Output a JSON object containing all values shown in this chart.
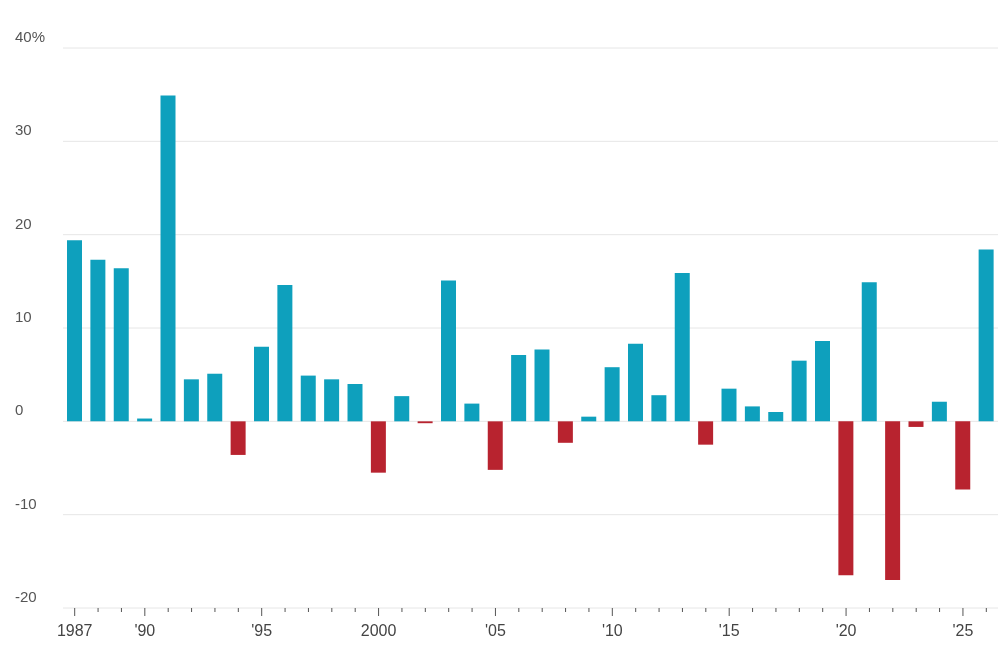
{
  "chart_data": {
    "type": "bar",
    "categories": [
      "1987",
      null,
      null,
      "'90",
      null,
      null,
      null,
      null,
      "'95",
      null,
      null,
      null,
      null,
      "2000",
      null,
      null,
      null,
      null,
      "'05",
      null,
      null,
      null,
      null,
      "'10",
      null,
      null,
      null,
      null,
      "'15",
      null,
      null,
      null,
      null,
      "'20",
      null,
      null,
      null,
      null,
      "'25",
      null
    ],
    "values": [
      19.4,
      17.3,
      16.4,
      0.3,
      34.9,
      4.5,
      5.1,
      -3.6,
      8.0,
      14.6,
      4.9,
      4.5,
      4.0,
      -5.5,
      2.7,
      -0.2,
      15.1,
      1.9,
      -5.2,
      7.1,
      7.7,
      -2.3,
      0.5,
      5.8,
      8.3,
      2.8,
      15.9,
      -2.5,
      3.5,
      1.6,
      1.0,
      6.5,
      8.6,
      -16.5,
      14.9,
      -17.0,
      -0.6,
      2.1,
      -7.3,
      18.4
    ],
    "colors": [
      "#0ea0bd",
      "#0ea0bd",
      "#0ea0bd",
      "#0ea0bd",
      "#0ea0bd",
      "#0ea0bd",
      "#0ea0bd",
      "#b8232f",
      "#0ea0bd",
      "#0ea0bd",
      "#0ea0bd",
      "#0ea0bd",
      "#0ea0bd",
      "#b8232f",
      "#0ea0bd",
      "#b8232f",
      "#0ea0bd",
      "#0ea0bd",
      "#b8232f",
      "#0ea0bd",
      "#0ea0bd",
      "#b8232f",
      "#0ea0bd",
      "#0ea0bd",
      "#0ea0bd",
      "#0ea0bd",
      "#0ea0bd",
      "#b8232f",
      "#0ea0bd",
      "#0ea0bd",
      "#0ea0bd",
      "#0ea0bd",
      "#0ea0bd",
      "#b8232f",
      "#0ea0bd",
      "#b8232f",
      "#b8232f",
      "#0ea0bd",
      "#b8232f",
      "#0ea0bd"
    ],
    "ylim": [
      -20,
      40
    ],
    "yticks": [
      -20,
      -10,
      0,
      10,
      20,
      30,
      {
        "value": 40,
        "label": "40%"
      }
    ],
    "grid": "y"
  }
}
